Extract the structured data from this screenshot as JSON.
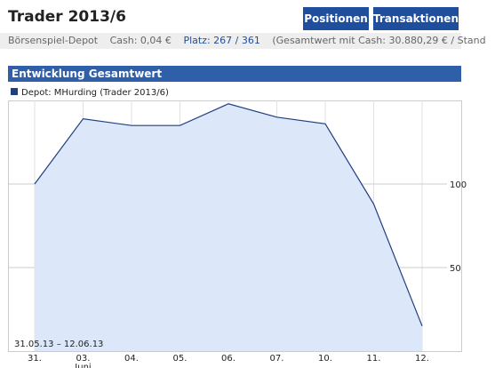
{
  "header": {
    "title": "Trader 2013/6",
    "buttons": [
      "Positionen",
      "Transaktionen"
    ]
  },
  "info": {
    "depot": "Börsenspiel-Depot",
    "cash": "Cash: 0,04 €",
    "platz": "Platz: 267 / 361",
    "gesamt": "(Gesamtwert mit Cash: 30.880,29 € / Stand"
  },
  "section": {
    "title": "Entwicklung Gesamtwert"
  },
  "chart_data": {
    "type": "area",
    "legend": "Depot: MHurding (Trader 2013/6)",
    "color": "#1f3f7f",
    "fill": "#dce8f9",
    "categories": [
      "31.",
      "03.",
      "04.",
      "05.",
      "06.",
      "07.",
      "10.",
      "11.",
      "12."
    ],
    "month_label": "Juni",
    "range_label": "31.05.13 – 12.06.13",
    "values": [
      100,
      139,
      135,
      135,
      148,
      140,
      136,
      88,
      15
    ],
    "ylim": [
      0,
      150
    ],
    "yticks": [
      50,
      100
    ],
    "grid": true
  }
}
